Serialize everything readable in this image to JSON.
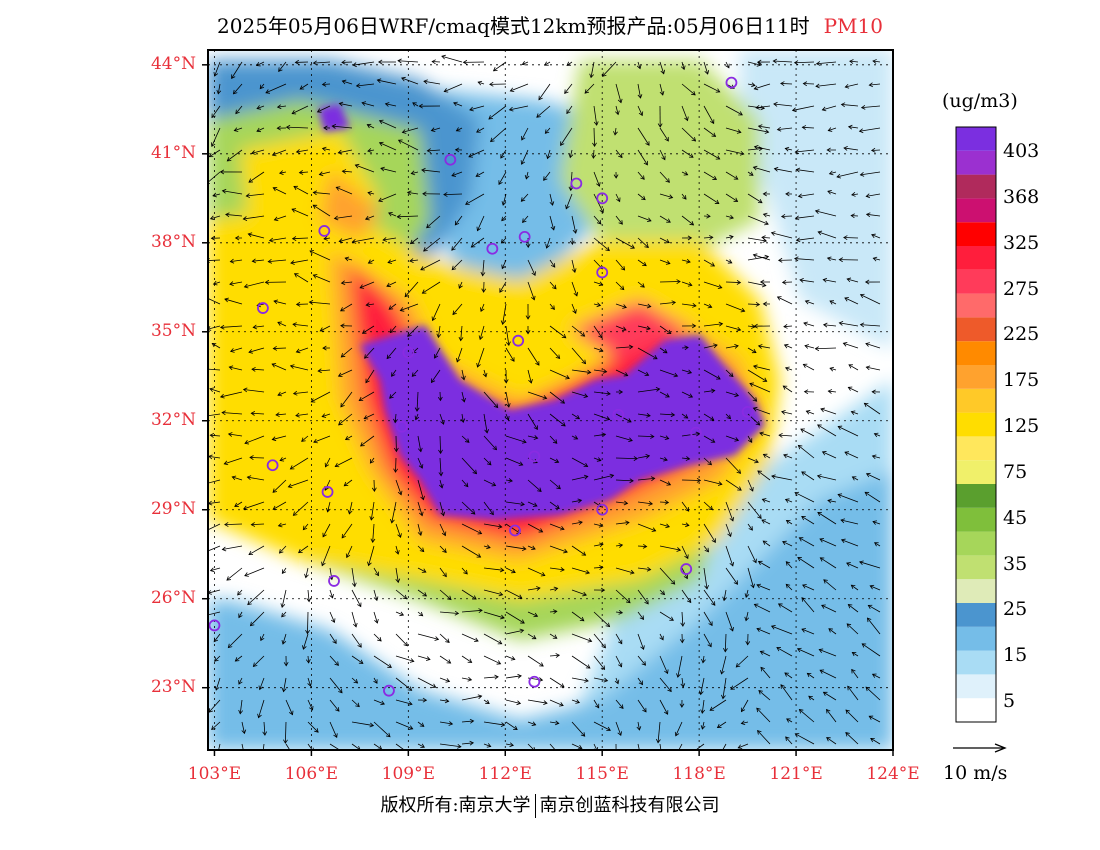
{
  "title": {
    "main": "2025年05月06日WRF/cmaq模式12km预报产品:05月06日11时",
    "variable": "PM10"
  },
  "map": {
    "lat_ticks": [
      "44°N",
      "41°N",
      "38°N",
      "35°N",
      "32°N",
      "29°N",
      "26°N",
      "23°N"
    ],
    "lat_values": [
      44,
      41,
      38,
      35,
      32,
      29,
      26,
      23
    ],
    "lon_ticks": [
      "103°E",
      "106°E",
      "109°E",
      "112°E",
      "115°E",
      "118°E",
      "121°E",
      "124°E"
    ],
    "lon_values": [
      103,
      106,
      109,
      112,
      115,
      118,
      121,
      124
    ],
    "lat_range": [
      20.9,
      44.5
    ],
    "lon_range": [
      102.8,
      124
    ]
  },
  "colorbar": {
    "unit": "(ug/m3)",
    "colors": [
      "#ffffff",
      "#dff1fb",
      "#a9dcf4",
      "#75bde8",
      "#4b95cf",
      "#dfebb8",
      "#c0e071",
      "#a6d65a",
      "#7fbf3b",
      "#5a9f2e",
      "#f0f06a",
      "#ffe75c",
      "#ffdd00",
      "#ffc928",
      "#ffa22e",
      "#ff8a00",
      "#ee5a2a",
      "#ff6a6a",
      "#ff3b5a",
      "#ff1e3c",
      "#ff0000",
      "#cc1070",
      "#b02a5c",
      "#9b30d0",
      "#7b2fe0"
    ],
    "labels": [
      "5",
      "15",
      "25",
      "35",
      "45",
      "75",
      "125",
      "175",
      "225",
      "275",
      "325",
      "368",
      "403"
    ]
  },
  "wind": {
    "reference_label": "10 m/s"
  },
  "credit": {
    "left": "版权所有:南京大学",
    "right": "南京创蓝科技有限公司"
  }
}
